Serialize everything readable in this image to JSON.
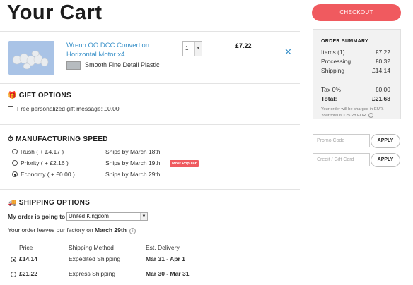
{
  "page": {
    "title": "Your Cart",
    "checkout_label": "CHECKOUT"
  },
  "cart": {
    "items": [
      {
        "name": "Wrenn OO DCC Convertion Horizontal Motor x4",
        "material": "Smooth Fine Detail Plastic",
        "quantity": "1",
        "price": "£7.22"
      }
    ]
  },
  "gift": {
    "title": "GIFT OPTIONS",
    "message_label": "Free personalized gift message: £0.00"
  },
  "manufacturing": {
    "title": "MANUFACTURING SPEED",
    "options": [
      {
        "label": "Rush ( + £4.17 )",
        "ships": "Ships by March 18th",
        "badge": "",
        "selected": false
      },
      {
        "label": "Priority ( + £2.16 )",
        "ships": "Ships by March 19th",
        "badge": "Most Popular",
        "selected": false
      },
      {
        "label": "Economy ( + £0.00 )",
        "ships": "Ships by March 29th",
        "badge": "",
        "selected": true
      }
    ]
  },
  "shipping": {
    "title": "SHIPPING OPTIONS",
    "destination_label": "My order is going to",
    "destination_value": "United Kingdom",
    "leaves_prefix": "Your order leaves our factory on",
    "leaves_date": "March 29th",
    "columns": [
      "Price",
      "Shipping Method",
      "Est. Delivery"
    ],
    "rows": [
      {
        "price": "£14.14",
        "method": "Expedited Shipping",
        "delivery": "Mar 31 - Apr 1",
        "selected": true
      },
      {
        "price": "£21.22",
        "method": "Express Shipping",
        "delivery": "Mar 30 - Mar 31",
        "selected": false
      }
    ]
  },
  "summary": {
    "title": "ORDER SUMMARY",
    "items_label": "Items (1)",
    "items_value": "£7.22",
    "processing_label": "Processing",
    "processing_value": "£0.32",
    "shipping_label": "Shipping",
    "shipping_value": "£14.14",
    "tax_label": "Tax 0%",
    "tax_value": "£0.00",
    "total_label": "Total:",
    "total_value": "£21.68",
    "note_currency": "Your order will be charged in EUR.",
    "note_total": "Your total is €25.28 EUR"
  },
  "promo": {
    "placeholder": "Promo Code",
    "apply_label": "APPLY"
  },
  "credit": {
    "placeholder": "Credit / Gift Card",
    "apply_label": "APPLY"
  },
  "colors": {
    "accent": "#f05a5f",
    "link": "#3a91c9"
  }
}
